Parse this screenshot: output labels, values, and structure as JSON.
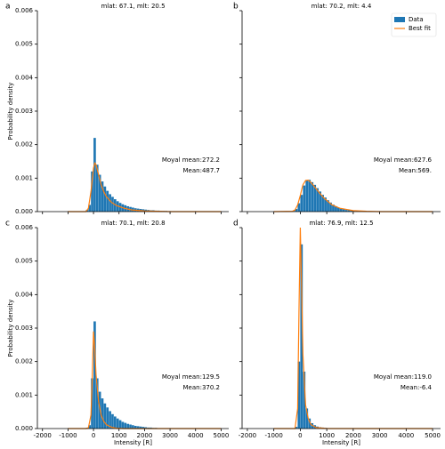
{
  "chart_data": [
    {
      "type": "histogram",
      "panel_label": "a",
      "title": "mlat: 67.1, mlt: 20.5",
      "ylabel": "Probability density",
      "show_xtick_labels": false,
      "show_ytick_labels": true,
      "hist_color": "#1f77b4",
      "fit_color": "#ff7f0e",
      "xlim": [
        -2200,
        5300
      ],
      "ylim": [
        0,
        0.006
      ],
      "xticks": [
        -2000,
        -1000,
        0,
        1000,
        2000,
        3000,
        4000,
        5000
      ],
      "yticks": [
        {
          "value": 0,
          "label": "0.000"
        },
        {
          "value": 0.001,
          "label": "0.001"
        },
        {
          "value": 0.002,
          "label": "0.002"
        },
        {
          "value": 0.003,
          "label": "0.003"
        },
        {
          "value": 0.004,
          "label": "0.004"
        },
        {
          "value": 0.005,
          "label": "0.005"
        },
        {
          "value": 0.006,
          "label": "0.006"
        }
      ],
      "bins": [
        -300,
        -200,
        -100,
        0,
        100,
        200,
        300,
        400,
        500,
        600,
        700,
        800,
        900,
        1000,
        1100,
        1200,
        1300,
        1400,
        1500,
        1600,
        1700,
        1800,
        1900,
        2000,
        2100,
        2200,
        2300,
        2400,
        2500,
        2600,
        2700,
        2800,
        2900,
        3000
      ],
      "values": [
        5e-05,
        0.0002,
        0.0012,
        0.0022,
        0.0014,
        0.0011,
        0.0009,
        0.00075,
        0.00062,
        0.00052,
        0.00044,
        0.00037,
        0.00031,
        0.00026,
        0.00022,
        0.00019,
        0.00016,
        0.00014,
        0.00012,
        0.0001,
        9e-05,
        8e-05,
        7e-05,
        6e-05,
        5e-05,
        4e-05,
        4e-05,
        3e-05,
        3e-05,
        2e-05,
        2e-05,
        2e-05,
        1e-05
      ],
      "fit": {
        "x": [
          -1000,
          -300,
          -200,
          -100,
          0,
          50,
          100,
          200,
          300,
          400,
          500,
          700,
          900,
          1200,
          1500,
          2000,
          2500,
          3000,
          5000
        ],
        "y": [
          0,
          0,
          0.0001,
          0.0006,
          0.0013,
          0.00145,
          0.0014,
          0.0011,
          0.0008,
          0.0006,
          0.00045,
          0.00028,
          0.00018,
          0.0001,
          5e-05,
          2e-05,
          1e-05,
          0,
          0
        ]
      },
      "annotations": [
        "Moyal mean:272.2",
        "Mean:487.7"
      ]
    },
    {
      "type": "histogram",
      "panel_label": "b",
      "title": "mlat: 70.2, mlt: 4.4",
      "show_xtick_labels": false,
      "show_ytick_labels": false,
      "hist_color": "#1f77b4",
      "fit_color": "#ff7f0e",
      "legend": {
        "corner": "upper right",
        "entries": [
          "Data",
          "Best fit"
        ]
      },
      "xlim": [
        -2200,
        5300
      ],
      "ylim": [
        0,
        0.006
      ],
      "xticks": [
        -2000,
        -1000,
        0,
        1000,
        2000,
        3000,
        4000,
        5000
      ],
      "yticks": [
        0,
        0.001,
        0.002,
        0.003,
        0.004,
        0.005,
        0.006
      ],
      "bins": [
        -300,
        -200,
        -100,
        0,
        100,
        200,
        300,
        400,
        500,
        600,
        700,
        800,
        900,
        1000,
        1100,
        1200,
        1300,
        1400,
        1500,
        1600,
        1700,
        1800,
        1900,
        2000,
        2100,
        2200,
        2300,
        2400,
        2500,
        2600,
        2700,
        2800,
        2900,
        3000
      ],
      "values": [
        2e-05,
        8e-05,
        0.00025,
        0.0005,
        0.00078,
        0.00093,
        0.00095,
        0.00088,
        0.0008,
        0.0007,
        0.0006,
        0.0005,
        0.00042,
        0.00034,
        0.00027,
        0.00021,
        0.00016,
        0.00012,
        9e-05,
        7e-05,
        5e-05,
        4e-05,
        3e-05,
        2e-05,
        2e-05,
        1e-05,
        1e-05,
        1e-05,
        0,
        0,
        0,
        0,
        0
      ],
      "fit": {
        "x": [
          -1000,
          -300,
          -200,
          -100,
          0,
          50,
          100,
          200,
          300,
          400,
          500,
          700,
          900,
          1200,
          1500,
          2000,
          2500,
          3000,
          5000
        ],
        "y": [
          0,
          1e-05,
          5e-05,
          0.0002,
          0.00048,
          0.00065,
          0.0008,
          0.00093,
          0.00094,
          0.00087,
          0.00078,
          0.00058,
          0.0004,
          0.0002,
          0.0001,
          3e-05,
          1e-05,
          0,
          0
        ]
      },
      "annotations": [
        "Moyal mean:627.6",
        "Mean:569."
      ]
    },
    {
      "type": "histogram",
      "panel_label": "c",
      "title": "mlat: 70.1, mlt: 20.8",
      "ylabel": "Probability density",
      "xlabel": "Intensity [R]",
      "show_xtick_labels": true,
      "show_ytick_labels": true,
      "hist_color": "#1f77b4",
      "fit_color": "#ff7f0e",
      "xlim": [
        -2200,
        5300
      ],
      "ylim": [
        0,
        0.006
      ],
      "xticks": [
        -2000,
        -1000,
        0,
        1000,
        2000,
        3000,
        4000,
        5000
      ],
      "yticks": [
        {
          "value": 0,
          "label": "0.000"
        },
        {
          "value": 0.001,
          "label": "0.001"
        },
        {
          "value": 0.002,
          "label": "0.002"
        },
        {
          "value": 0.003,
          "label": "0.003"
        },
        {
          "value": 0.004,
          "label": "0.004"
        },
        {
          "value": 0.005,
          "label": "0.005"
        },
        {
          "value": 0.006,
          "label": "0.006"
        }
      ],
      "bins": [
        -300,
        -200,
        -100,
        0,
        100,
        200,
        300,
        400,
        500,
        600,
        700,
        800,
        900,
        1000,
        1100,
        1200,
        1300,
        1400,
        1500,
        1600,
        1700,
        1800,
        1900,
        2000,
        2100,
        2200,
        2300,
        2400,
        2500,
        2600,
        2700,
        2800,
        2900,
        3000
      ],
      "values": [
        2e-05,
        0.0001,
        0.0015,
        0.0032,
        0.0015,
        0.0011,
        0.0009,
        0.00075,
        0.00063,
        0.00052,
        0.00043,
        0.00036,
        0.0003,
        0.00025,
        0.0002,
        0.00017,
        0.00014,
        0.00012,
        0.0001,
        8e-05,
        7e-05,
        6e-05,
        5e-05,
        4e-05,
        3e-05,
        3e-05,
        2e-05,
        2e-05,
        1e-05,
        1e-05,
        1e-05,
        0,
        0
      ],
      "fit": {
        "x": [
          -1000,
          -300,
          -200,
          -100,
          -50,
          0,
          50,
          100,
          200,
          300,
          400,
          500,
          700,
          900,
          1200,
          1500,
          2000,
          3000,
          5000
        ],
        "y": [
          0,
          0,
          2e-05,
          0.0004,
          0.0015,
          0.0029,
          0.0024,
          0.0016,
          0.0008,
          0.0004,
          0.00022,
          0.00012,
          4e-05,
          1e-05,
          0,
          0,
          0,
          0,
          0
        ]
      },
      "annotations": [
        "Moyal mean:129.5",
        "Mean:370.2"
      ]
    },
    {
      "type": "histogram",
      "panel_label": "d",
      "title": "mlat: 76.9, mlt: 12.5",
      "xlabel": "Intensity [R]",
      "show_xtick_labels": true,
      "show_ytick_labels": false,
      "hist_color": "#1f77b4",
      "fit_color": "#ff7f0e",
      "xlim": [
        -2200,
        5300
      ],
      "ylim": [
        0,
        0.006
      ],
      "xticks": [
        -2000,
        -1000,
        0,
        1000,
        2000,
        3000,
        4000,
        5000
      ],
      "yticks": [
        0,
        0.001,
        0.002,
        0.003,
        0.004,
        0.005,
        0.006
      ],
      "bins": [
        -300,
        -200,
        -100,
        0,
        100,
        200,
        300,
        400,
        500,
        600,
        700,
        800,
        900,
        1000,
        1100,
        1200,
        1300,
        1400,
        1500,
        1600,
        1700,
        1800,
        1900,
        2000,
        2100,
        2200,
        2300,
        2400,
        2500,
        2600,
        2700,
        2800,
        2900,
        3000
      ],
      "values": [
        0,
        5e-05,
        0.002,
        0.0055,
        0.0017,
        0.0006,
        0.0003,
        0.00016,
        0.0001,
        6e-05,
        4e-05,
        3e-05,
        2e-05,
        1e-05,
        0,
        0,
        0,
        0,
        0,
        0,
        0,
        0,
        0,
        0,
        0,
        0,
        0,
        0,
        0,
        0,
        0,
        0,
        0
      ],
      "fit": {
        "x": [
          -1000,
          -200,
          -100,
          -50,
          0,
          50,
          100,
          200,
          300,
          400,
          600,
          1000,
          5000
        ],
        "y": [
          0,
          0,
          0.0006,
          0.0035,
          0.006,
          0.0042,
          0.0022,
          0.0007,
          0.0003,
          0.00012,
          3e-05,
          0,
          0
        ]
      },
      "annotations": [
        "Moyal mean:119.0",
        "Mean:-6.4"
      ]
    }
  ]
}
